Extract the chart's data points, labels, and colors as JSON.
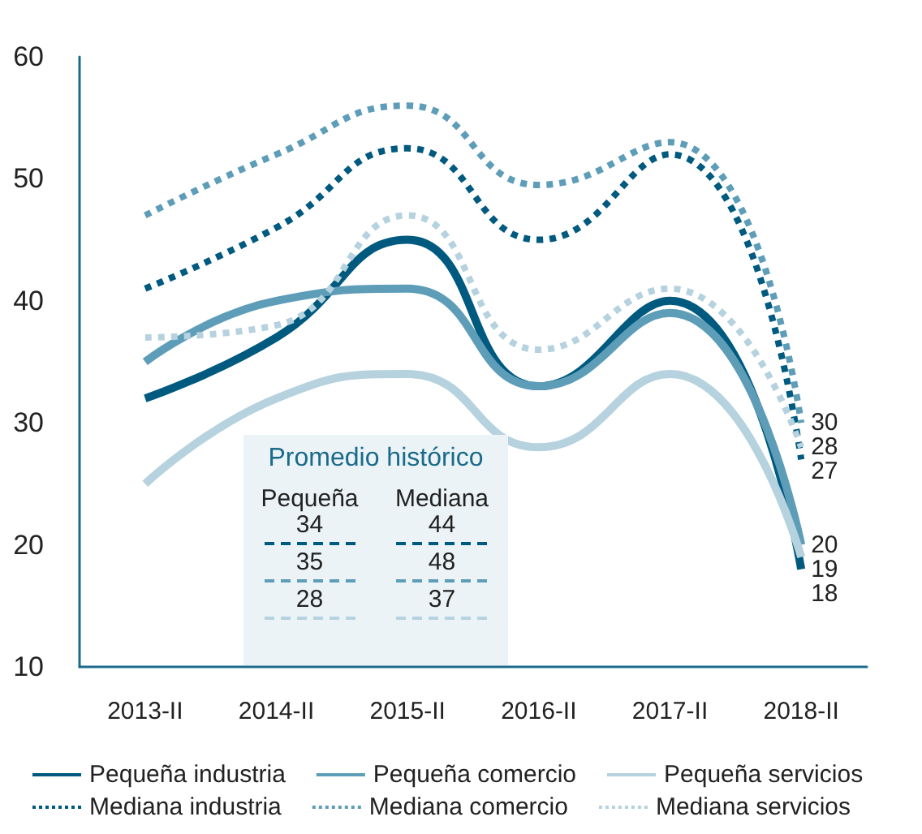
{
  "chart_data": {
    "type": "line",
    "categories": [
      "2013-II",
      "2014-II",
      "2015-II",
      "2016-II",
      "2017-II",
      "2018-II"
    ],
    "series": [
      {
        "name": "Pequeña industria",
        "color": "#005a7f",
        "line_style": "solid",
        "values": [
          32,
          37,
          45,
          33,
          40,
          18
        ],
        "value_labels": [
          null,
          null,
          null,
          null,
          null,
          "18"
        ]
      },
      {
        "name": "Pequeña comercio",
        "color": "#5e9db8",
        "line_style": "solid",
        "values": [
          35,
          40,
          41,
          33,
          39,
          20
        ],
        "value_labels": [
          null,
          null,
          null,
          null,
          null,
          "20"
        ]
      },
      {
        "name": "Pequeña servicios",
        "color": "#b5d2de",
        "line_style": "solid",
        "values": [
          25,
          32,
          34,
          28,
          34,
          19
        ],
        "value_labels": [
          null,
          null,
          null,
          null,
          null,
          "19"
        ]
      },
      {
        "name": "Mediana industria",
        "color": "#005a7f",
        "line_style": "dotted",
        "values": [
          41,
          46,
          52.5,
          45,
          52,
          27
        ],
        "value_labels": [
          null,
          null,
          null,
          null,
          null,
          "27"
        ]
      },
      {
        "name": "Mediana comercio",
        "color": "#5e9db8",
        "line_style": "dotted",
        "values": [
          47,
          52,
          56,
          49.5,
          53,
          30
        ],
        "value_labels": [
          null,
          null,
          null,
          null,
          null,
          "30"
        ]
      },
      {
        "name": "Mediana servicios",
        "color": "#b5d2de",
        "line_style": "dotted",
        "values": [
          37,
          38,
          47,
          36,
          41,
          28
        ],
        "value_labels": [
          null,
          null,
          null,
          null,
          null,
          "28"
        ]
      }
    ],
    "ylim": [
      10,
      60
    ],
    "yticks": [
      10,
      20,
      30,
      40,
      50,
      60
    ],
    "grid": false,
    "legend": "bottom",
    "marker": "none",
    "annotations": [
      "Promedio histórico",
      "Pequeña",
      "Mediana",
      "34",
      "44",
      "35",
      "48",
      "28",
      "37"
    ]
  }
}
